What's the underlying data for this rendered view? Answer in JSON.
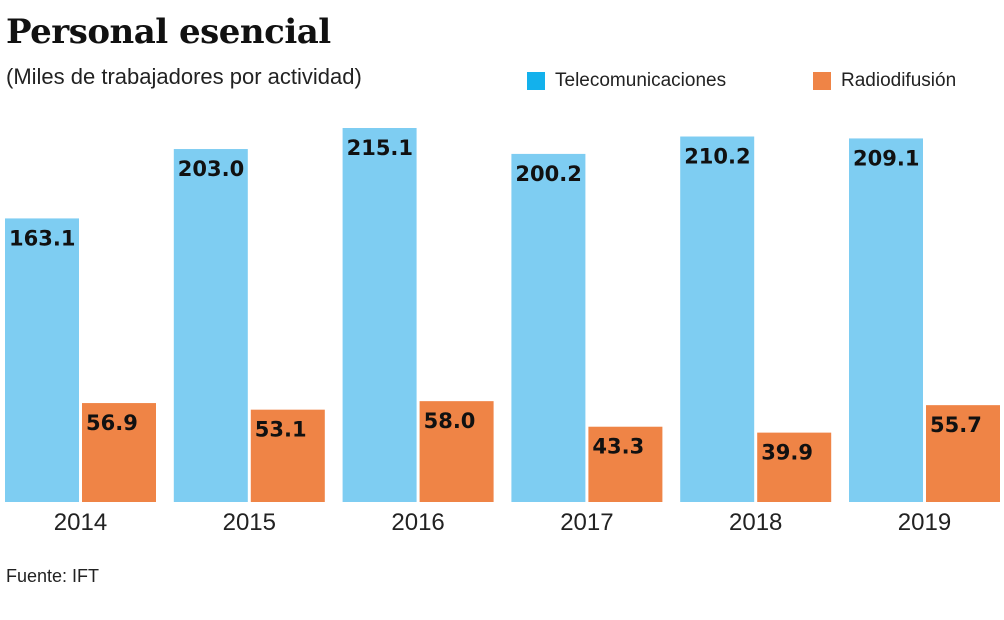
{
  "chart_data": {
    "type": "bar",
    "title": "Personal esencial",
    "subtitle": "(Miles de trabajadores por actividad)",
    "categories": [
      "2014",
      "2015",
      "2016",
      "2017",
      "2018",
      "2019"
    ],
    "series": [
      {
        "name": "Telecomunicaciones",
        "values": [
          163.1,
          203.0,
          215.1,
          200.2,
          210.2,
          209.1
        ],
        "color": "#7ecdf2",
        "legend_color": "#13b1ec"
      },
      {
        "name": "Radiodifusión",
        "values": [
          56.9,
          53.1,
          58.0,
          43.3,
          39.9,
          55.7
        ],
        "color": "#ef8446",
        "legend_color": "#ef8446"
      }
    ],
    "xlabel": "",
    "ylabel": "",
    "ylim": [
      0,
      215.1
    ],
    "grid": false,
    "legend_position": "top-right",
    "source": "Fuente: IFT"
  }
}
